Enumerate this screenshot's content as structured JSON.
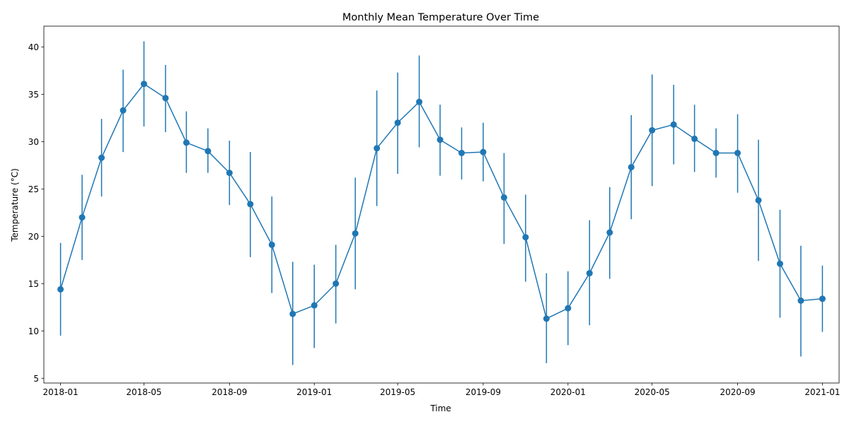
{
  "chart_data": {
    "type": "line",
    "title": "Monthly Mean Temperature Over Time",
    "xlabel": "Time",
    "ylabel": "Temperature (°C)",
    "ylim": [
      4.5,
      42.2
    ],
    "xlim": [
      "2017-12-08",
      "2021-01-25"
    ],
    "grid": false,
    "legend": "none",
    "color": "#1f77b4",
    "error_bars": true,
    "x_tick_labels": [
      "2018-01",
      "2018-05",
      "2018-09",
      "2019-01",
      "2019-05",
      "2019-09",
      "2020-01",
      "2020-05",
      "2020-09",
      "2021-01"
    ],
    "x_ticks": [
      "2018-01-01",
      "2018-05-01",
      "2018-09-01",
      "2019-01-01",
      "2019-05-01",
      "2019-09-01",
      "2020-01-01",
      "2020-05-01",
      "2020-09-01",
      "2021-01-01"
    ],
    "y_ticks": [
      5,
      10,
      15,
      20,
      25,
      30,
      35,
      40
    ],
    "series": [
      {
        "x": [
          "2018-01-01",
          "2018-02-01",
          "2018-03-01",
          "2018-04-01",
          "2018-05-01",
          "2018-06-01",
          "2018-07-01",
          "2018-08-01",
          "2018-09-01",
          "2018-10-01",
          "2018-11-01",
          "2018-12-01",
          "2019-01-01",
          "2019-02-01",
          "2019-03-01",
          "2019-04-01",
          "2019-05-01",
          "2019-06-01",
          "2019-07-01",
          "2019-08-01",
          "2019-09-01",
          "2019-10-01",
          "2019-11-01",
          "2019-12-01",
          "2020-01-01",
          "2020-02-01",
          "2020-03-01",
          "2020-04-01",
          "2020-05-01",
          "2020-06-01",
          "2020-07-01",
          "2020-08-01",
          "2020-09-01",
          "2020-10-01",
          "2020-11-01",
          "2020-12-01",
          "2021-01-01"
        ],
        "y": [
          14.4,
          22.0,
          28.3,
          33.3,
          36.1,
          34.6,
          29.9,
          29.0,
          26.7,
          23.4,
          19.1,
          11.8,
          12.7,
          15.0,
          20.3,
          29.3,
          32.0,
          34.2,
          30.2,
          28.8,
          28.9,
          24.1,
          19.9,
          11.3,
          12.4,
          16.1,
          20.4,
          27.3,
          31.2,
          31.8,
          30.3,
          28.8,
          28.8,
          23.8,
          17.1,
          13.2,
          13.4
        ],
        "yerr_low": [
          9.5,
          17.5,
          24.2,
          28.9,
          31.6,
          31.0,
          26.7,
          26.7,
          23.3,
          17.8,
          14.0,
          6.4,
          8.2,
          10.8,
          14.4,
          23.2,
          26.6,
          29.4,
          26.4,
          26.0,
          25.8,
          19.2,
          15.2,
          6.6,
          8.5,
          10.6,
          15.5,
          21.8,
          25.3,
          27.6,
          26.8,
          26.2,
          24.6,
          17.4,
          11.4,
          7.3,
          9.9
        ],
        "yerr_high": [
          19.3,
          26.5,
          32.4,
          37.6,
          40.6,
          38.1,
          33.2,
          31.4,
          30.1,
          28.9,
          24.2,
          17.3,
          17.0,
          19.1,
          26.2,
          35.4,
          37.3,
          39.1,
          33.9,
          31.5,
          32.0,
          28.8,
          24.4,
          16.1,
          16.3,
          21.7,
          25.2,
          32.8,
          37.1,
          36.0,
          33.9,
          31.4,
          32.9,
          30.2,
          22.8,
          19.0,
          16.9
        ]
      }
    ]
  }
}
